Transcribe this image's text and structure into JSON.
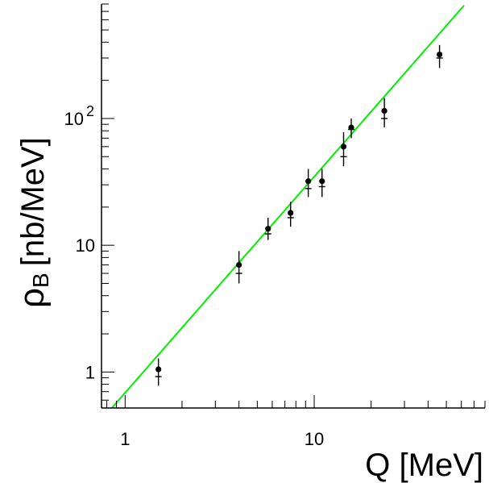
{
  "chart_data": {
    "type": "scatter",
    "title": "",
    "xlabel": "Q [MeV]",
    "ylabel_symbol": "ρ",
    "ylabel_subscript": "B",
    "ylabel_unit": "[nb/MeV]",
    "x_scale": "log",
    "y_scale": "log",
    "xlim": [
      0.75,
      80
    ],
    "ylim": [
      0.52,
      800
    ],
    "x_ticks": [
      {
        "value": 1,
        "label": "1"
      },
      {
        "value": 10,
        "label": "10"
      }
    ],
    "y_ticks": [
      {
        "value": 1,
        "label": "1",
        "exponent": ""
      },
      {
        "value": 10,
        "label": "10",
        "exponent": ""
      },
      {
        "value": 100,
        "label": "10",
        "exponent": "2"
      }
    ],
    "grid": false,
    "series": [
      {
        "style": "markers-with-error-bars",
        "color": "#000000",
        "points": [
          {
            "x": 1.5,
            "y": 1.05,
            "y_low": 0.78,
            "y_high": 1.28,
            "y_alt": 0.92
          },
          {
            "x": 4.0,
            "y": 7.0,
            "y_low": 5.0,
            "y_high": 9.0,
            "y_alt": 6.0
          },
          {
            "x": 5.7,
            "y": 13.5,
            "y_low": 11.0,
            "y_high": 16.5,
            "y_alt": 12.3
          },
          {
            "x": 7.5,
            "y": 18.0,
            "y_low": 14.0,
            "y_high": 22.0,
            "y_alt": 16.5
          },
          {
            "x": 9.3,
            "y": 32.0,
            "y_low": 24.0,
            "y_high": 40.0,
            "y_alt": 28.0
          },
          {
            "x": 11.0,
            "y": 32.0,
            "y_low": 24.0,
            "y_high": 40.0,
            "y_alt": 29.0
          },
          {
            "x": 14.3,
            "y": 60.0,
            "y_low": 42.0,
            "y_high": 78.0,
            "y_alt": 50.0
          },
          {
            "x": 15.7,
            "y": 85.0,
            "y_low": 70.0,
            "y_high": 100.0,
            "y_alt": 82.0
          },
          {
            "x": 23.5,
            "y": 115.0,
            "y_low": 85.0,
            "y_high": 145.0,
            "y_alt": 100.0
          },
          {
            "x": 46.0,
            "y": 320.0,
            "y_low": 250.0,
            "y_high": 380.0,
            "y_alt": 300.0
          }
        ]
      },
      {
        "style": "line",
        "color": "#00ee00",
        "x": [
          0.85,
          62.0
        ],
        "y": [
          0.52,
          780.0
        ]
      }
    ]
  }
}
